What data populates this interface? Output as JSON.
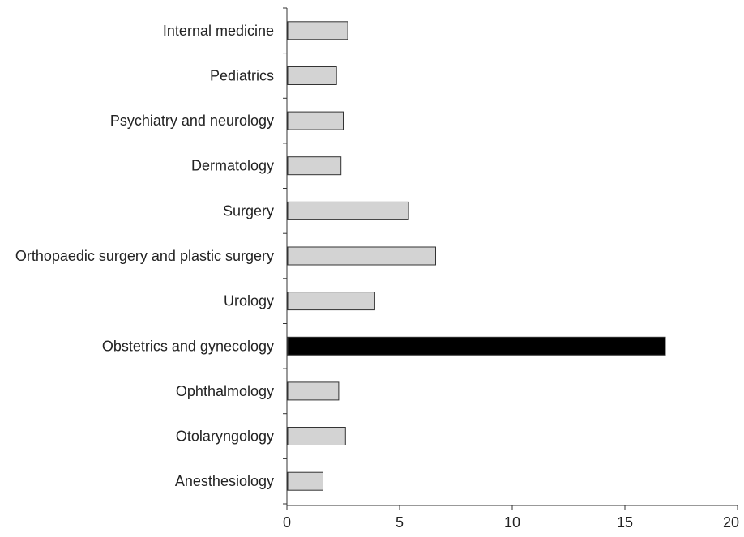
{
  "chart_data": {
    "type": "bar",
    "orientation": "horizontal",
    "categories": [
      "Internal medicine",
      "Pediatrics",
      "Psychiatry and neurology",
      "Dermatology",
      "Surgery",
      "Orthopaedic surgery and plastic surgery",
      "Urology",
      "Obstetrics and gynecology",
      "Ophthalmology",
      "Otolaryngology",
      "Anesthesiology"
    ],
    "values": [
      2.7,
      2.2,
      2.5,
      2.4,
      5.4,
      6.6,
      3.9,
      16.8,
      2.3,
      2.6,
      1.6
    ],
    "highlight_index": 7,
    "xlim": [
      0,
      20
    ],
    "xticks": [
      0,
      5,
      10,
      15,
      20
    ],
    "xtick_labels": [
      "0",
      "5",
      "10",
      "15",
      "20"
    ],
    "title": "",
    "xlabel": "",
    "ylabel": "",
    "grid": false,
    "legend": "none",
    "colors": {
      "bar_fill": "#d3d3d3",
      "bar_stroke": "#333333",
      "highlight_fill": "#000000",
      "axis": "#333333",
      "text": "#222222"
    }
  }
}
